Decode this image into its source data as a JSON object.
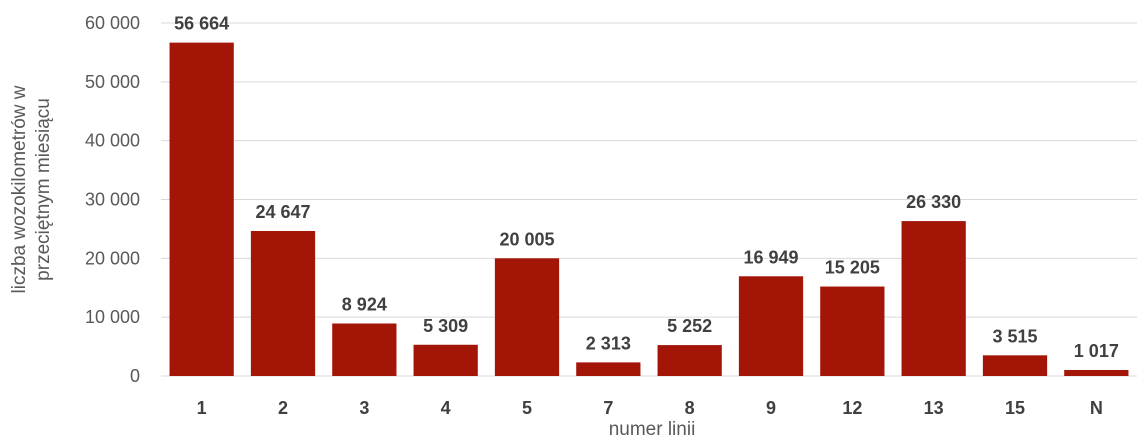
{
  "chart_data": {
    "type": "bar",
    "categories": [
      "1",
      "2",
      "3",
      "4",
      "5",
      "7",
      "8",
      "9",
      "12",
      "13",
      "15",
      "N"
    ],
    "values": [
      56664,
      24647,
      8924,
      5309,
      20005,
      2313,
      5252,
      16949,
      15205,
      26330,
      3515,
      1017
    ],
    "data_labels": [
      "56 664",
      "24 647",
      "8 924",
      "5 309",
      "20 005",
      "2 313",
      "5 252",
      "16 949",
      "15 205",
      "26 330",
      "3 515",
      "1 017"
    ],
    "title": "",
    "xlabel": "numer linii",
    "ylabel_lines": [
      "liczba wozokilometrów w",
      "przeciętnym miesiącu"
    ],
    "ylim": [
      0,
      60000
    ],
    "yticks": [
      0,
      10000,
      20000,
      30000,
      40000,
      50000,
      60000
    ],
    "ytick_labels": [
      "0",
      "10 000",
      "20 000",
      "30 000",
      "40 000",
      "50 000",
      "60 000"
    ],
    "grid": true,
    "legend": "none",
    "bar_color": "#a31507",
    "grid_color": "#d9d9d9"
  }
}
